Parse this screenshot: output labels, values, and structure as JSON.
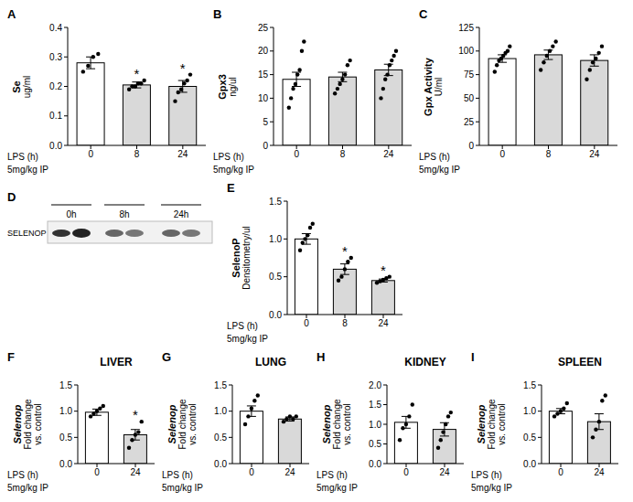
{
  "chart_data": [
    {
      "label": "A",
      "type": "bar",
      "categories": [
        "0",
        "8",
        "24"
      ],
      "values": [
        0.28,
        0.205,
        0.2
      ],
      "errors": [
        0.02,
        0.01,
        0.02
      ],
      "points": [
        [
          0.25,
          0.27,
          0.3,
          0.31
        ],
        [
          0.19,
          0.2,
          0.2,
          0.21,
          0.21,
          0.22
        ],
        [
          0.15,
          0.18,
          0.19,
          0.21,
          0.22,
          0.24
        ]
      ],
      "significance": [
        null,
        "*",
        "*"
      ],
      "colors": [
        "#ffffff",
        "#d9d9d9",
        "#d9d9d9"
      ],
      "ylabel": [
        "Se",
        "ug/ml"
      ],
      "xlabel": "LPS",
      "xunit": "(h)",
      "xnote": "5mg/kg IP",
      "ylim": [
        0,
        0.4
      ],
      "yticks": [
        {
          "value": 0,
          "label": "0.0"
        },
        0.1,
        0.2,
        0.3,
        0.4
      ],
      "grid": false
    },
    {
      "label": "B",
      "type": "bar",
      "categories": [
        "0",
        "8",
        "24"
      ],
      "values": [
        14,
        14.5,
        16
      ],
      "errors": [
        1.5,
        1,
        1.2
      ],
      "points": [
        [
          8,
          10,
          12,
          13,
          15,
          16,
          20,
          22
        ],
        [
          11,
          12,
          13,
          14,
          15,
          17,
          18
        ],
        [
          10,
          12,
          14,
          15,
          17,
          18,
          19,
          20
        ]
      ],
      "significance": [
        null,
        null,
        null
      ],
      "colors": [
        "#ffffff",
        "#d9d9d9",
        "#d9d9d9"
      ],
      "ylabel": [
        "Gpx3",
        "ng/ul"
      ],
      "xlabel": "LPS",
      "xunit": "(h)",
      "xnote": "5mg/kg IP",
      "ylim": [
        0,
        25
      ],
      "yticks": [
        0,
        5,
        10,
        15,
        20,
        25
      ],
      "grid": false
    },
    {
      "label": "C",
      "type": "bar",
      "categories": [
        "0",
        "8",
        "24"
      ],
      "values": [
        92,
        96,
        90
      ],
      "errors": [
        4,
        5,
        6
      ],
      "points": [
        [
          78,
          85,
          90,
          92,
          95,
          98,
          100,
          105
        ],
        [
          80,
          88,
          95,
          100,
          105,
          110
        ],
        [
          70,
          80,
          88,
          92,
          98,
          105
        ]
      ],
      "significance": [
        null,
        null,
        null
      ],
      "colors": [
        "#ffffff",
        "#d9d9d9",
        "#d9d9d9"
      ],
      "ylabel": [
        "Gpx Activity",
        "U/ml"
      ],
      "xlabel": "LPS",
      "xunit": "(h)",
      "xnote": "5mg/kg IP",
      "ylim": [
        0,
        125
      ],
      "yticks": [
        0,
        25,
        50,
        75,
        100,
        125
      ],
      "grid": false
    },
    {
      "label": "E",
      "type": "bar",
      "categories": [
        "0",
        "8",
        "24"
      ],
      "values": [
        1.0,
        0.6,
        0.45
      ],
      "errors": [
        0.07,
        0.07,
        0.02
      ],
      "points": [
        [
          0.85,
          0.95,
          1.0,
          1.05,
          1.15,
          1.2
        ],
        [
          0.45,
          0.5,
          0.6,
          0.7,
          0.75
        ],
        [
          0.42,
          0.44,
          0.46,
          0.48,
          0.5
        ]
      ],
      "significance": [
        null,
        "*",
        "*"
      ],
      "colors": [
        "#ffffff",
        "#d9d9d9",
        "#d9d9d9"
      ],
      "ylabel": [
        "SelenoP",
        "Densitometry/ul"
      ],
      "xlabel": "LPS",
      "xunit": "(h)",
      "xnote": "5mg/kg IP",
      "ylim": [
        0,
        1.5
      ],
      "yticks": [
        {
          "value": 0,
          "label": "0.0"
        },
        0.5,
        {
          "value": 1,
          "label": "1.0"
        },
        1.5
      ],
      "grid": false
    },
    {
      "label": "F",
      "title": "LIVER",
      "type": "bar",
      "categories": [
        "0",
        "24"
      ],
      "values": [
        0.98,
        0.55
      ],
      "errors": [
        0.06,
        0.1
      ],
      "points": [
        [
          0.9,
          0.95,
          1.0,
          1.05,
          1.1
        ],
        [
          0.3,
          0.45,
          0.55,
          0.6,
          0.8
        ]
      ],
      "significance": [
        null,
        "*"
      ],
      "colors": [
        "#ffffff",
        "#d9d9d9"
      ],
      "ylabel": [
        "Selenop",
        "Fold change",
        "vs. control"
      ],
      "xlabel": "LPS",
      "xunit": "(h)",
      "xnote": "5mg/kg IP",
      "ylim": [
        0,
        1.5
      ],
      "yticks": [
        {
          "value": 0,
          "label": "0.0"
        },
        0.5,
        {
          "value": 1,
          "label": "1.0"
        },
        1.5
      ],
      "grid": false
    },
    {
      "label": "G",
      "title": "LUNG",
      "type": "bar",
      "categories": [
        "0",
        "24"
      ],
      "values": [
        1.0,
        0.85
      ],
      "errors": [
        0.1,
        0.04
      ],
      "points": [
        [
          0.75,
          0.9,
          1.05,
          1.2,
          1.3
        ],
        [
          0.8,
          0.85,
          0.9,
          0.85,
          0.9
        ]
      ],
      "significance": [
        null,
        null
      ],
      "colors": [
        "#ffffff",
        "#d9d9d9"
      ],
      "ylabel": [
        "Selenop",
        "Fold change",
        "vs. control"
      ],
      "xlabel": "LPS",
      "xunit": "(h)",
      "xnote": "5mg/kg IP",
      "ylim": [
        0,
        1.5
      ],
      "yticks": [
        {
          "value": 0,
          "label": "0.0"
        },
        0.5,
        {
          "value": 1,
          "label": "1.0"
        },
        1.5
      ],
      "grid": false
    },
    {
      "label": "H",
      "title": "KIDNEY",
      "type": "bar",
      "categories": [
        "0",
        "24"
      ],
      "values": [
        1.05,
        0.87
      ],
      "errors": [
        0.15,
        0.17
      ],
      "points": [
        [
          0.6,
          0.9,
          1.0,
          1.2,
          1.5
        ],
        [
          0.4,
          0.6,
          0.8,
          1.0,
          1.2,
          1.3
        ]
      ],
      "significance": [
        null,
        null
      ],
      "colors": [
        "#ffffff",
        "#d9d9d9"
      ],
      "ylabel": [
        "Selenop",
        "Fold change",
        "vs. control"
      ],
      "xlabel": "LPS",
      "xunit": "(h)",
      "xnote": "5mg/kg IP",
      "ylim": [
        0,
        2
      ],
      "yticks": [
        {
          "value": 0,
          "label": "0.0"
        },
        0.5,
        {
          "value": 1,
          "label": "1.0"
        },
        1.5,
        {
          "value": 2,
          "label": "2.0"
        }
      ],
      "grid": false
    },
    {
      "label": "I",
      "title": "SPLEEN",
      "type": "bar",
      "categories": [
        "0",
        "24"
      ],
      "values": [
        1.0,
        0.8
      ],
      "errors": [
        0.05,
        0.15
      ],
      "points": [
        [
          0.9,
          0.95,
          1.0,
          1.05,
          1.15
        ],
        [
          0.5,
          0.65,
          0.8,
          1.2,
          1.3
        ]
      ],
      "significance": [
        null,
        null
      ],
      "colors": [
        "#ffffff",
        "#d9d9d9"
      ],
      "ylabel": [
        "Selenop",
        "Fold change",
        "vs. control"
      ],
      "xlabel": "LPS",
      "xunit": "(h)",
      "xnote": "5mg/kg IP",
      "ylim": [
        0,
        1.5
      ],
      "yticks": [
        {
          "value": 0,
          "label": "0.0"
        },
        0.5,
        {
          "value": 1,
          "label": "1.0"
        },
        1.5
      ],
      "grid": false
    }
  ],
  "blot": {
    "label": "D",
    "lanes": [
      "0h",
      "8h",
      "24h"
    ],
    "protein": "SELENOP"
  }
}
